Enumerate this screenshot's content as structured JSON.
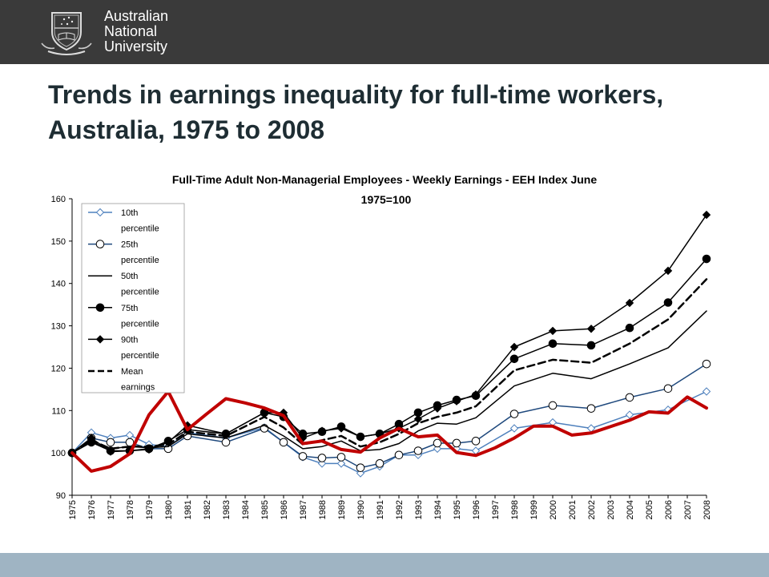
{
  "header": {
    "logo_lines": [
      "Australian",
      "National",
      "University"
    ]
  },
  "slide": {
    "title": "Trends in earnings inequality for full-time workers, Australia, 1975 to 2008"
  },
  "colors": {
    "header_bg": "#3a3a3a",
    "footer_bg": "#9fb4c3",
    "series_10th": "#4f81bd",
    "series_25th": "#1f497d",
    "series_black": "#000000",
    "red_line": "#c00000"
  },
  "chart_data": {
    "type": "line",
    "title_lines": [
      "Full-Time Adult Non-Managerial Employees - Weekly Earnings  - EEH  Index June",
      "1975=100"
    ],
    "xlabel": "",
    "ylabel": "",
    "ylim": [
      90,
      160
    ],
    "yticks": [
      "90",
      "100",
      "110",
      "120",
      "130",
      "140",
      "150",
      "160"
    ],
    "grid": false,
    "legend_position": "top-left",
    "x": [
      "1975",
      "1976",
      "1977",
      "1978",
      "1979",
      "1980",
      "1981",
      "1982",
      "1983",
      "1984",
      "1985",
      "1986",
      "1987",
      "1988",
      "1989",
      "1990",
      "1991",
      "1992",
      "1993",
      "1994",
      "1995",
      "1996",
      "1997",
      "1998",
      "1999",
      "2000",
      "2001",
      "2002",
      "2003",
      "2004",
      "2005",
      "2006",
      "2007",
      "2008"
    ],
    "series": [
      {
        "name": "10th percentile",
        "legend_lines": [
          "10th",
          "percentile"
        ],
        "color": "#4f81bd",
        "marker": "diamond-open",
        "dash": false,
        "width": 1.5,
        "points": [
          [
            "1975",
            100
          ],
          [
            "1976",
            104.8
          ],
          [
            "1977",
            103.5
          ],
          [
            "1978",
            104.2
          ],
          [
            "1979",
            102
          ],
          [
            "1980",
            101.5
          ],
          [
            "1981",
            104.8
          ],
          [
            "1983",
            103.5
          ],
          [
            "1985",
            106
          ],
          [
            "1986",
            102.5
          ],
          [
            "1987",
            99
          ],
          [
            "1988",
            97.5
          ],
          [
            "1989",
            97.5
          ],
          [
            "1990",
            95.2
          ],
          [
            "1991",
            96.8
          ],
          [
            "1992",
            99.5
          ],
          [
            "1993",
            99.5
          ],
          [
            "1994",
            101
          ],
          [
            "1995",
            101
          ],
          [
            "1996",
            100.5
          ],
          [
            "1998",
            105.8
          ],
          [
            "2000",
            107.2
          ],
          [
            "2002",
            105.8
          ],
          [
            "2004",
            109
          ],
          [
            "2006",
            110.2
          ],
          [
            "2008",
            114.5
          ]
        ]
      },
      {
        "name": "25th percentile",
        "legend_lines": [
          "25th",
          "percentile"
        ],
        "color": "#1f497d",
        "marker": "circle-open",
        "dash": false,
        "width": 1.5,
        "points": [
          [
            "1975",
            100
          ],
          [
            "1976",
            103.5
          ],
          [
            "1977",
            102.5
          ],
          [
            "1978",
            102.5
          ],
          [
            "1979",
            101
          ],
          [
            "1980",
            101
          ],
          [
            "1981",
            104
          ],
          [
            "1983",
            102.5
          ],
          [
            "1985",
            105.8
          ],
          [
            "1986",
            102.5
          ],
          [
            "1987",
            99.2
          ],
          [
            "1988",
            98.8
          ],
          [
            "1989",
            99
          ],
          [
            "1990",
            96.5
          ],
          [
            "1991",
            97.5
          ],
          [
            "1992",
            99.5
          ],
          [
            "1993",
            100.5
          ],
          [
            "1994",
            102.3
          ],
          [
            "1995",
            102.3
          ],
          [
            "1996",
            102.8
          ],
          [
            "1998",
            109.2
          ],
          [
            "2000",
            111.2
          ],
          [
            "2002",
            110.5
          ],
          [
            "2004",
            113.1
          ],
          [
            "2006",
            115.2
          ],
          [
            "2008",
            121
          ]
        ]
      },
      {
        "name": "50th percentile",
        "legend_lines": [
          "50th",
          "percentile"
        ],
        "color": "#000000",
        "marker": "none",
        "dash": false,
        "width": 1.5,
        "points": [
          [
            "1975",
            100
          ],
          [
            "1976",
            102.5
          ],
          [
            "1977",
            101
          ],
          [
            "1978",
            101.5
          ],
          [
            "1979",
            101.2
          ],
          [
            "1980",
            101.5
          ],
          [
            "1981",
            104.5
          ],
          [
            "1983",
            103.5
          ],
          [
            "1985",
            106.5
          ],
          [
            "1986",
            104
          ],
          [
            "1987",
            101
          ],
          [
            "1988",
            101.5
          ],
          [
            "1989",
            102.8
          ],
          [
            "1990",
            100.5
          ],
          [
            "1991",
            100.8
          ],
          [
            "1992",
            102.2
          ],
          [
            "1993",
            105.2
          ],
          [
            "1994",
            107
          ],
          [
            "1995",
            106.8
          ],
          [
            "1996",
            108.3
          ],
          [
            "1998",
            115.8
          ],
          [
            "2000",
            118.8
          ],
          [
            "2002",
            117.5
          ],
          [
            "2004",
            121
          ],
          [
            "2006",
            124.8
          ],
          [
            "2008",
            133.5
          ]
        ]
      },
      {
        "name": "75th percentile",
        "legend_lines": [
          "75th",
          "percentile"
        ],
        "color": "#000000",
        "marker": "circle-filled",
        "dash": false,
        "width": 1.5,
        "points": [
          [
            "1975",
            100
          ],
          [
            "1976",
            102.5
          ],
          [
            "1977",
            100.5
          ],
          [
            "1978",
            100.5
          ],
          [
            "1979",
            101
          ],
          [
            "1980",
            102.8
          ],
          [
            "1981",
            105.5
          ],
          [
            "1983",
            104.5
          ],
          [
            "1985",
            109.5
          ],
          [
            "1986",
            108.5
          ],
          [
            "1987",
            104.5
          ],
          [
            "1988",
            105
          ],
          [
            "1989",
            106.2
          ],
          [
            "1990",
            103.8
          ],
          [
            "1991",
            104.5
          ],
          [
            "1992",
            106.8
          ],
          [
            "1993",
            109.5
          ],
          [
            "1994",
            111.2
          ],
          [
            "1995",
            112.5
          ],
          [
            "1996",
            113.5
          ],
          [
            "1998",
            122.2
          ],
          [
            "2000",
            125.8
          ],
          [
            "2002",
            125.4
          ],
          [
            "2004",
            129.5
          ],
          [
            "2006",
            135.5
          ],
          [
            "2008",
            145.8
          ]
        ]
      },
      {
        "name": "90th percentile",
        "legend_lines": [
          "90th",
          "percentile"
        ],
        "color": "#000000",
        "marker": "diamond-filled",
        "dash": false,
        "width": 1.5,
        "points": [
          [
            "1975",
            100
          ],
          [
            "1976",
            103.5
          ],
          [
            "1977",
            100.3
          ],
          [
            "1978",
            100.5
          ],
          [
            "1979",
            100.8
          ],
          [
            "1980",
            102.5
          ],
          [
            "1981",
            106.5
          ],
          [
            "1983",
            104.5
          ],
          [
            "1985",
            109.5
          ],
          [
            "1986",
            109.5
          ],
          [
            "1987",
            103.5
          ],
          [
            "1988",
            105.2
          ],
          [
            "1989",
            105.8
          ],
          [
            "1990",
            103.8
          ],
          [
            "1991",
            104.5
          ],
          [
            "1992",
            105.8
          ],
          [
            "1993",
            108
          ],
          [
            "1994",
            110.5
          ],
          [
            "1995",
            112.2
          ],
          [
            "1996",
            113.8
          ],
          [
            "1998",
            125
          ],
          [
            "2000",
            128.8
          ],
          [
            "2002",
            129.3
          ],
          [
            "2004",
            135.4
          ],
          [
            "2006",
            143
          ],
          [
            "2008",
            156.2
          ]
        ]
      },
      {
        "name": "Mean earnings",
        "legend_lines": [
          "Mean",
          "earnings"
        ],
        "color": "#000000",
        "marker": "none",
        "dash": true,
        "width": 2.5,
        "points": [
          [
            "1975",
            100
          ],
          [
            "1976",
            103
          ],
          [
            "1977",
            101
          ],
          [
            "1978",
            101.5
          ],
          [
            "1979",
            101.5
          ],
          [
            "1980",
            102
          ],
          [
            "1981",
            105
          ],
          [
            "1983",
            104
          ],
          [
            "1985",
            108.5
          ],
          [
            "1986",
            106
          ],
          [
            "1987",
            102
          ],
          [
            "1988",
            103
          ],
          [
            "1989",
            104
          ],
          [
            "1990",
            101.5
          ],
          [
            "1991",
            102.5
          ],
          [
            "1992",
            104.5
          ],
          [
            "1993",
            107
          ],
          [
            "1994",
            108.5
          ],
          [
            "1995",
            109.5
          ],
          [
            "1996",
            111
          ],
          [
            "1998",
            119.5
          ],
          [
            "2000",
            122
          ],
          [
            "2002",
            121.3
          ],
          [
            "2004",
            125.8
          ],
          [
            "2006",
            131.5
          ],
          [
            "2008",
            141
          ]
        ]
      },
      {
        "name": "",
        "legend_lines": [],
        "color": "#c00000",
        "marker": "none",
        "dash": false,
        "width": 4,
        "points": [
          [
            "1975",
            100
          ],
          [
            "1976",
            95.7
          ],
          [
            "1977",
            96.8
          ],
          [
            "1978",
            99.8
          ],
          [
            "1979",
            109
          ],
          [
            "1980",
            114.5
          ],
          [
            "1981",
            105.5
          ],
          [
            "1982",
            109.2
          ],
          [
            "1983",
            112.8
          ],
          [
            "1984",
            111.8
          ],
          [
            "1985",
            110.6
          ],
          [
            "1986",
            108.8
          ],
          [
            "1987",
            102.2
          ],
          [
            "1988",
            102.8
          ],
          [
            "1989",
            100.8
          ],
          [
            "1990",
            100.2
          ],
          [
            "1991",
            103.5
          ],
          [
            "1992",
            105.8
          ],
          [
            "1993",
            103.8
          ],
          [
            "1994",
            104.2
          ],
          [
            "1995",
            100.1
          ],
          [
            "1996",
            99.4
          ],
          [
            "1997",
            101.2
          ],
          [
            "1998",
            103.5
          ],
          [
            "1999",
            106.3
          ],
          [
            "2000",
            106.3
          ],
          [
            "2001",
            104.2
          ],
          [
            "2002",
            104.7
          ],
          [
            "2003",
            106.2
          ],
          [
            "2004",
            107.7
          ],
          [
            "2005",
            109.7
          ],
          [
            "2006",
            109.4
          ],
          [
            "2007",
            113.2
          ],
          [
            "2008",
            110.6
          ]
        ]
      }
    ]
  }
}
